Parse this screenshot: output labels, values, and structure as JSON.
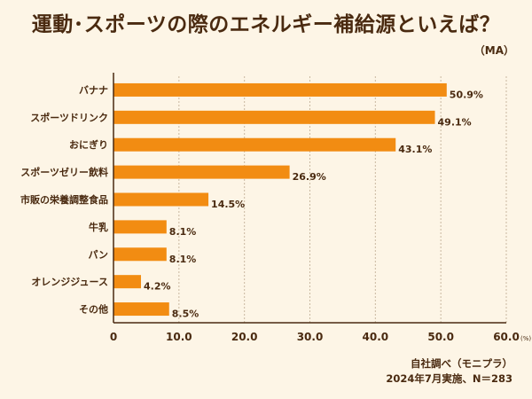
{
  "chart_data": {
    "type": "bar",
    "orientation": "horizontal",
    "title": "運動･スポーツの際のエネルギー補給源といえば？",
    "subtitle": "（MA）",
    "categories": [
      "バナナ",
      "スポーツドリンク",
      "おにぎり",
      "スポーツゼリー飲料",
      "市販の栄養調整食品",
      "牛乳",
      "パン",
      "オレンジジュース",
      "その他"
    ],
    "values": [
      50.9,
      49.1,
      43.1,
      26.9,
      14.5,
      8.1,
      8.1,
      4.2,
      8.5
    ],
    "value_labels": [
      "50.9%",
      "49.1%",
      "43.1%",
      "26.9%",
      "14.5%",
      "8.1%",
      "8.1%",
      "4.2%",
      "8.5%"
    ],
    "xlim": [
      0,
      60
    ],
    "xticks": [
      0,
      10,
      20,
      30,
      40,
      50,
      60
    ],
    "xtick_labels": [
      "0",
      "10.0",
      "20.0",
      "30.0",
      "40.0",
      "50.0",
      "60.0"
    ],
    "x_unit": "(%)",
    "grid": true,
    "source": [
      "自社調べ（モニプラ）",
      "2024年7月実施、N＝283"
    ],
    "colors": {
      "bar": "#f28c12",
      "background": "#fdf5e6",
      "text": "#4a2a10",
      "grid": "#c9b8a0",
      "axis": "#4a2a10"
    }
  }
}
